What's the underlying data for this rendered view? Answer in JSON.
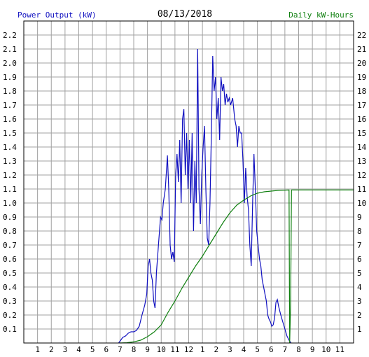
{
  "chart_data": {
    "type": "line",
    "title": "08/13/2018",
    "ylabel_left": "Power Output (kW)",
    "ylabel_right": "Daily kW-Hours",
    "xlabel": "",
    "grid": true,
    "x_tick_labels": [
      "1",
      "2",
      "3",
      "4",
      "5",
      "6",
      "7",
      "8",
      "9",
      "10",
      "11",
      "12",
      "1",
      "2",
      "3",
      "4",
      "5",
      "6",
      "7",
      "8",
      "9",
      "10",
      "11"
    ],
    "ylim_left": [
      0,
      2.3
    ],
    "ylim_right": [
      0,
      23
    ],
    "y_left_ticks": [
      "0.1",
      "0.2",
      "0.3",
      "0.4",
      "0.5",
      "0.6",
      "0.7",
      "0.8",
      "0.9",
      "1.0",
      "1.1",
      "1.2",
      "1.3",
      "1.4",
      "1.5",
      "1.6",
      "1.7",
      "1.8",
      "1.9",
      "2.0",
      "2.1",
      "2.2"
    ],
    "y_right_ticks": [
      "1",
      "2",
      "3",
      "4",
      "5",
      "6",
      "7",
      "8",
      "9",
      "10",
      "11",
      "12",
      "13",
      "14",
      "15",
      "16",
      "17",
      "18",
      "19",
      "20",
      "21",
      "22"
    ],
    "xlim": [
      0,
      24
    ],
    "colors": {
      "power": "#1010c0",
      "energy": "#108010",
      "grid": "#a0a0a0",
      "axis": "#000000"
    },
    "series": [
      {
        "key": "power",
        "axis": "left",
        "points": [
          [
            6.9,
            0.0
          ],
          [
            7.05,
            0.02
          ],
          [
            7.2,
            0.04
          ],
          [
            7.4,
            0.05
          ],
          [
            7.6,
            0.07
          ],
          [
            7.8,
            0.08
          ],
          [
            8.0,
            0.08
          ],
          [
            8.2,
            0.09
          ],
          [
            8.4,
            0.12
          ],
          [
            8.6,
            0.2
          ],
          [
            8.8,
            0.27
          ],
          [
            8.95,
            0.35
          ],
          [
            9.05,
            0.55
          ],
          [
            9.15,
            0.6
          ],
          [
            9.25,
            0.5
          ],
          [
            9.35,
            0.45
          ],
          [
            9.45,
            0.3
          ],
          [
            9.55,
            0.25
          ],
          [
            9.65,
            0.5
          ],
          [
            9.8,
            0.7
          ],
          [
            9.95,
            0.9
          ],
          [
            10.05,
            0.88
          ],
          [
            10.15,
            1.0
          ],
          [
            10.3,
            1.1
          ],
          [
            10.45,
            1.34
          ],
          [
            10.55,
            1.1
          ],
          [
            10.65,
            0.7
          ],
          [
            10.75,
            0.6
          ],
          [
            10.85,
            0.65
          ],
          [
            10.95,
            0.58
          ],
          [
            11.05,
            1.2
          ],
          [
            11.15,
            1.35
          ],
          [
            11.25,
            1.15
          ],
          [
            11.35,
            1.45
          ],
          [
            11.45,
            1.0
          ],
          [
            11.55,
            1.6
          ],
          [
            11.65,
            1.67
          ],
          [
            11.75,
            1.2
          ],
          [
            11.85,
            1.5
          ],
          [
            11.95,
            1.1
          ],
          [
            12.05,
            1.45
          ],
          [
            12.15,
            1.0
          ],
          [
            12.25,
            1.5
          ],
          [
            12.35,
            0.8
          ],
          [
            12.45,
            1.3
          ],
          [
            12.55,
            1.0
          ],
          [
            12.65,
            2.1
          ],
          [
            12.75,
            1.1
          ],
          [
            12.85,
            0.85
          ],
          [
            12.95,
            1.2
          ],
          [
            13.05,
            1.4
          ],
          [
            13.15,
            1.55
          ],
          [
            13.25,
            1.1
          ],
          [
            13.35,
            0.75
          ],
          [
            13.45,
            0.7
          ],
          [
            13.55,
            1.0
          ],
          [
            13.65,
            1.5
          ],
          [
            13.75,
            2.05
          ],
          [
            13.85,
            1.8
          ],
          [
            13.95,
            1.9
          ],
          [
            14.05,
            1.6
          ],
          [
            14.15,
            1.75
          ],
          [
            14.25,
            1.45
          ],
          [
            14.35,
            1.9
          ],
          [
            14.45,
            1.8
          ],
          [
            14.55,
            1.85
          ],
          [
            14.65,
            1.7
          ],
          [
            14.75,
            1.78
          ],
          [
            14.85,
            1.72
          ],
          [
            14.95,
            1.75
          ],
          [
            15.05,
            1.7
          ],
          [
            15.2,
            1.75
          ],
          [
            15.35,
            1.6
          ],
          [
            15.45,
            1.55
          ],
          [
            15.55,
            1.4
          ],
          [
            15.65,
            1.55
          ],
          [
            15.75,
            1.5
          ],
          [
            15.85,
            1.5
          ],
          [
            15.95,
            1.3
          ],
          [
            16.05,
            1.0
          ],
          [
            16.15,
            1.25
          ],
          [
            16.25,
            1.05
          ],
          [
            16.35,
            0.95
          ],
          [
            16.45,
            0.7
          ],
          [
            16.55,
            0.55
          ],
          [
            16.65,
            1.0
          ],
          [
            16.75,
            1.35
          ],
          [
            16.85,
            1.1
          ],
          [
            16.95,
            0.8
          ],
          [
            17.05,
            0.7
          ],
          [
            17.15,
            0.6
          ],
          [
            17.25,
            0.55
          ],
          [
            17.35,
            0.45
          ],
          [
            17.45,
            0.4
          ],
          [
            17.55,
            0.35
          ],
          [
            17.65,
            0.3
          ],
          [
            17.75,
            0.2
          ],
          [
            17.85,
            0.17
          ],
          [
            17.95,
            0.15
          ],
          [
            18.05,
            0.12
          ],
          [
            18.15,
            0.13
          ],
          [
            18.25,
            0.18
          ],
          [
            18.35,
            0.29
          ],
          [
            18.45,
            0.31
          ],
          [
            18.55,
            0.26
          ],
          [
            18.7,
            0.2
          ],
          [
            18.85,
            0.15
          ],
          [
            19.0,
            0.1
          ],
          [
            19.15,
            0.05
          ],
          [
            19.3,
            0.02
          ],
          [
            19.45,
            0.0
          ]
        ]
      },
      {
        "key": "energy",
        "axis": "right",
        "points": [
          [
            7.0,
            0.0
          ],
          [
            7.5,
            0.02
          ],
          [
            8.0,
            0.08
          ],
          [
            8.5,
            0.2
          ],
          [
            9.0,
            0.45
          ],
          [
            9.5,
            0.8
          ],
          [
            10.0,
            1.3
          ],
          [
            10.5,
            2.2
          ],
          [
            11.0,
            3.0
          ],
          [
            11.5,
            3.9
          ],
          [
            12.0,
            4.7
          ],
          [
            12.5,
            5.5
          ],
          [
            13.0,
            6.2
          ],
          [
            13.5,
            7.0
          ],
          [
            14.0,
            7.8
          ],
          [
            14.5,
            8.6
          ],
          [
            15.0,
            9.3
          ],
          [
            15.5,
            9.85
          ],
          [
            16.0,
            10.2
          ],
          [
            16.5,
            10.5
          ],
          [
            17.0,
            10.7
          ],
          [
            17.5,
            10.8
          ],
          [
            18.0,
            10.85
          ],
          [
            18.5,
            10.9
          ],
          [
            19.0,
            10.92
          ],
          [
            19.3,
            10.93
          ],
          [
            19.35,
            0.0
          ],
          [
            19.42,
            2.8
          ],
          [
            19.48,
            10.93
          ],
          [
            24.0,
            10.93
          ]
        ]
      }
    ]
  }
}
